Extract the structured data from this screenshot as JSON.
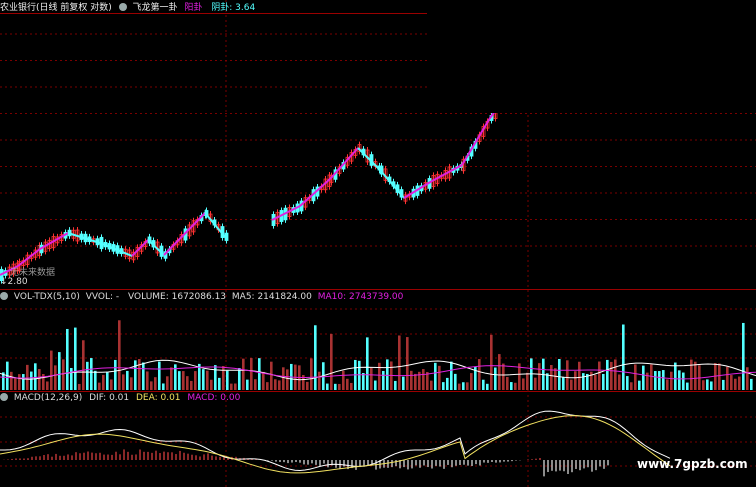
{
  "header": {
    "stock_title": "农业银行(日线 前复权 对数)",
    "indicator_name": "飞龙第一卦",
    "yang_label": "阳卦",
    "yin_label": "阴卦: 3.64"
  },
  "price_panel": {
    "low_price": "2.80",
    "note": "无未来数据"
  },
  "volume_panel": {
    "title": "VOL-TDX(5,10)",
    "vvol": "VVOL: -",
    "volume": "VOLUME: 1672086.13",
    "ma5": "MA5: 2141824.00",
    "ma10": "MA10: 2743739.00"
  },
  "macd_panel": {
    "title": "MACD(12,26,9)",
    "dif": "DIF: 0.01",
    "dea": "DEA: 0.01",
    "macd": "MACD: 0.00"
  },
  "watermark": "www.7gpzb.com",
  "colors": {
    "up": "#ff3232",
    "down": "#54ffff",
    "ma5": "#ffffff",
    "ma10": "#e020e0",
    "dif": "#ffffff",
    "dea": "#f0e060",
    "grid": "#7a0000"
  },
  "chart_data": {
    "type": "candlestick",
    "price_min": 2.8,
    "yin_value": 3.64
  }
}
